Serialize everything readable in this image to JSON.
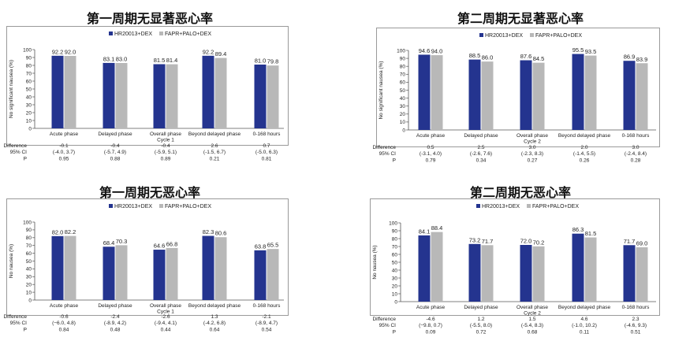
{
  "colors": {
    "hr": "#24348f",
    "fapr": "#b8b8b8"
  },
  "stat_labels": [
    "Difference",
    "95% CI",
    "P"
  ],
  "chart_data": [
    {
      "type": "bar",
      "title": "第一周期无显著恶心率",
      "ylabel": "No significant nausea (%)",
      "ylim": [
        0,
        100
      ],
      "yticks": [
        "0",
        "10",
        "20",
        "30",
        "40",
        "50",
        "60",
        "70",
        "80",
        "90",
        "100"
      ],
      "categories": [
        "Acute phase",
        "Delayed phase",
        "Overall phase\nCycle 1",
        "Beyond delayed phase",
        "0-168 hours"
      ],
      "series": [
        {
          "name": "HR20013+DEX",
          "values": [
            92.2,
            83.1,
            81.5,
            92.2,
            81.0
          ],
          "labels": [
            "92.2",
            "83.1",
            "81.5",
            "92.2",
            "81.0"
          ]
        },
        {
          "name": "FAPR+PALO+DEX",
          "values": [
            92.0,
            83.0,
            81.4,
            89.4,
            79.8
          ],
          "labels": [
            "92.0",
            "83.0",
            "81.4",
            "89.4",
            "79.8"
          ]
        }
      ],
      "stats": [
        [
          "-0.1",
          "(-4.0, 3.7)",
          "0.95"
        ],
        [
          "-0.4",
          "(-5.7, 4.9)",
          "0.88"
        ],
        [
          "-0.4",
          "(-5.9, 5.1)",
          "0.89"
        ],
        [
          "2.6",
          "(-1.5, 6.7)",
          "0.21"
        ],
        [
          "0.7",
          "(-5.0, 6.3)",
          "0.81"
        ]
      ]
    },
    {
      "type": "bar",
      "title": "第二周期无显著恶心率",
      "ylabel": "No significant nausea (%)",
      "ylim": [
        0,
        100
      ],
      "yticks": [
        "0",
        "10",
        "20",
        "30",
        "40",
        "50",
        "60",
        "70",
        "80",
        "90",
        "100"
      ],
      "categories": [
        "Acute phase",
        "Delayed phase",
        "Overall phase\nCycle 2",
        "Beyond delayed phase",
        "0-168 hours"
      ],
      "series": [
        {
          "name": "HR20013+DEX",
          "values": [
            94.6,
            88.5,
            87.6,
            95.5,
            86.9
          ],
          "labels": [
            "94.6",
            "88.5",
            "87.6",
            "95.5",
            "86.9"
          ]
        },
        {
          "name": "FAPR+PALO+DEX",
          "values": [
            94.0,
            86.0,
            84.5,
            93.5,
            83.9
          ],
          "labels": [
            "94.0",
            "86.0",
            "84.5",
            "93.5",
            "83.9"
          ]
        }
      ],
      "stats": [
        [
          "0.5",
          "(-3.1, 4.0)",
          "0.79"
        ],
        [
          "2.5",
          "(-2.6, 7.6)",
          "0.34"
        ],
        [
          "3.0",
          "(-2.3, 8.3)",
          "0.27"
        ],
        [
          "2.0",
          "(-1.4, 5.5)",
          "0.26"
        ],
        [
          "3.0",
          "(-2.4, 8.4)",
          "0.28"
        ]
      ]
    },
    {
      "type": "bar",
      "title": "第一周期无恶心率",
      "ylabel": "No nausea (%)",
      "ylim": [
        0,
        100
      ],
      "yticks": [
        "0",
        "10",
        "20",
        "30",
        "40",
        "50",
        "60",
        "70",
        "80",
        "90",
        "100"
      ],
      "categories": [
        "Acute phase",
        "Delayed phase",
        "Overall phase\nCycle 1",
        "Beyond delayed phase",
        "0-168 hours"
      ],
      "series": [
        {
          "name": "HR20013+DEX",
          "values": [
            82.0,
            68.4,
            64.6,
            82.3,
            63.8
          ],
          "labels": [
            "82.0",
            "68.4",
            "64.6",
            "82.3",
            "63.8"
          ]
        },
        {
          "name": "FAPR+PALO+DEX",
          "values": [
            82.2,
            70.3,
            66.8,
            80.6,
            65.5
          ],
          "labels": [
            "82.2",
            "70.3",
            "66.8",
            "80.6",
            "65.5"
          ]
        }
      ],
      "stats": [
        [
          "-0.6",
          "(−6.0, 4.8)",
          "0.84"
        ],
        [
          "-2.4",
          "(-8.9, 4.2)",
          "0.48"
        ],
        [
          "-2.6",
          "(-9.4, 4.1)",
          "0.44"
        ],
        [
          "1.3",
          "(-4.2, 6.8)",
          "0.64"
        ],
        [
          "-2.1",
          "(-8.9, 4.7)",
          "0.54"
        ]
      ]
    },
    {
      "type": "bar",
      "title": "第二周期无恶心率",
      "ylabel": "No nausea (%)",
      "ylim": [
        0,
        100
      ],
      "yticks": [
        "0",
        "10",
        "20",
        "30",
        "40",
        "50",
        "60",
        "70",
        "80",
        "90",
        "100"
      ],
      "categories": [
        "Acute phase",
        "Delayed phase",
        "Overall phase\nCycle 2",
        "Beyond delayed phase",
        "0-168 hours"
      ],
      "series": [
        {
          "name": "HR20013+DEX",
          "values": [
            84.1,
            73.2,
            72.0,
            86.3,
            71.7
          ],
          "labels": [
            "84.1",
            "73.2",
            "72.0",
            "86.3",
            "71.7"
          ]
        },
        {
          "name": "FAPR+PALO+DEX",
          "values": [
            88.4,
            71.7,
            70.2,
            81.5,
            69.0
          ],
          "labels": [
            "88.4",
            "71.7",
            "70.2",
            "81.5",
            "69.0"
          ]
        }
      ],
      "stats": [
        [
          "-4.6",
          "(−9.8, 0.7)",
          "0.09"
        ],
        [
          "1.2",
          "(-5.5, 8.0)",
          "0.72"
        ],
        [
          "1.5",
          "(-5.4, 8.3)",
          "0.68"
        ],
        [
          "4.6",
          "(-1.0, 10.2)",
          "0.11"
        ],
        [
          "2.3",
          "(-4.6, 9.3)",
          "0.51"
        ]
      ]
    }
  ]
}
